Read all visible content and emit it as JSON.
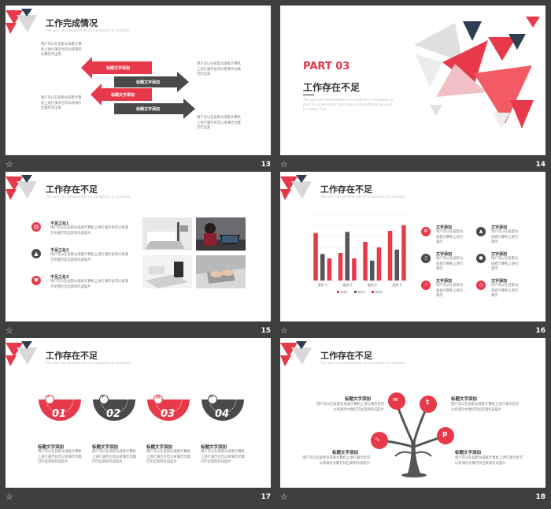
{
  "slides": [
    {
      "number": "13",
      "title": "工作完成情况",
      "subtitle": "The user can demonstrate on a projector or computer",
      "desc_left_top": "用户可以在投影仪或者计算机上进行演示也可以将演示文稿打印出来",
      "desc_left_bottom": "用户可以在投影仪或者计算机上进行演示也可以将演示文稿打印出来",
      "desc_right_top": "用户可以在投影仪或者计算机上进行演示也可以将演示文稿打印出来",
      "desc_right_bottom": "用户可以在投影仪或者计算机上进行演示也可以将演示文稿打印出来",
      "arrow_labels": [
        "标题文字添加",
        "标题文字添加",
        "标题文字添加",
        "标题文字添加"
      ]
    },
    {
      "number": "14",
      "part": "PART 03",
      "title": "工作存在不足",
      "body": "The user can demonstrate on a projector or computer, or print the presentation and make it into a film to be used in a wider field"
    },
    {
      "number": "15",
      "title": "工作存在不足",
      "subtitle": "The user can demonstrate on a projector or computer",
      "items": [
        {
          "title": "不足之处1",
          "text": "用户可以在投影仪或者计算机上进行演示也可以将演示文稿打印出来制作成胶片"
        },
        {
          "title": "不足之处2",
          "text": "用户可以在投影仪或者计算机上进行演示也可以将演示文稿打印出来制作成胶片"
        },
        {
          "title": "不足之处3",
          "text": "用户可以在投影仪或者计算机上进行演示也可以将演示文稿打印出来制作成胶片"
        }
      ]
    },
    {
      "number": "16",
      "title": "工作存在不足",
      "subtitle": "The user can demonstrate on a projector or computer",
      "blocks": [
        {
          "title": "文字添加",
          "text": "用户可以在投影仪或者计算机上进行演示"
        },
        {
          "title": "文字添加",
          "text": "用户可以在投影仪或者计算机上进行演示"
        },
        {
          "title": "文字添加",
          "text": "用户可以在投影仪或者计算机上进行演示"
        },
        {
          "title": "文字添加",
          "text": "用户可以在投影仪或者计算机上进行演示"
        },
        {
          "title": "文字添加",
          "text": "用户可以在投影仪或者计算机上进行演示"
        },
        {
          "title": "文字添加",
          "text": "用户可以在投影仪或者计算机上进行演示"
        }
      ]
    },
    {
      "number": "17",
      "title": "工作存在不足",
      "subtitle": "The user can demonstrate on a projector or computer",
      "steps": [
        {
          "num": "01",
          "title": "标题文字添加",
          "text": "用户可以在投影仪或者计算机上进行演示也可以将演示文稿打印出来制作成胶片"
        },
        {
          "num": "02",
          "title": "标题文字添加",
          "text": "用户可以在投影仪或者计算机上进行演示也可以将演示文稿打印出来制作成胶片"
        },
        {
          "num": "03",
          "title": "标题文字添加",
          "text": "用户可以在投影仪或者计算机上进行演示也可以将演示文稿打印出来制作成胶片"
        },
        {
          "num": "04",
          "title": "标题文字添加",
          "text": "用户可以在投影仪或者计算机上进行演示也可以将演示文稿打印出来制作成胶片"
        }
      ]
    },
    {
      "number": "18",
      "title": "工作存在不足",
      "subtitle": "The user can demonstrate on a projector or computer",
      "labels": [
        {
          "title": "标题文字添加",
          "text": "用户可以在投影仪或者计算机上进行演示也可以将演示文稿打印出来制作成胶片"
        },
        {
          "title": "标题文字添加",
          "text": "用户可以在投影仪或者计算机上进行演示也可以将演示文稿打印出来制作成胶片"
        },
        {
          "title": "标题文字添加",
          "text": "用户可以在投影仪或者计算机上进行演示也可以将演示文稿打印出来制作成胶片"
        },
        {
          "title": "标题文字添加",
          "text": "用户可以在投影仪或者计算机上进行演示也可以将演示文稿打印出来制作成胶片"
        }
      ]
    }
  ],
  "icons": {
    "star": "☆",
    "slide16": [
      "gear",
      "chart",
      "phone",
      "person",
      "trend",
      "clock"
    ],
    "slide17": [
      "link",
      "bike",
      "doc",
      "mail"
    ],
    "slide18": [
      "mail",
      "t",
      "chart",
      "p"
    ]
  },
  "colors": {
    "accent": "#e8394a",
    "dark": "#4a4a4a",
    "bg": "#3f3f3f"
  },
  "chart_data": {
    "type": "bar",
    "categories": [
      "类别 1",
      "类别 2",
      "类别 3",
      "类别 4"
    ],
    "series": [
      {
        "name": "系列1",
        "values": [
          4.3,
          2.5,
          3.5,
          4.5
        ]
      },
      {
        "name": "系列2",
        "values": [
          2.4,
          4.4,
          1.8,
          2.8
        ]
      },
      {
        "name": "系列3",
        "values": [
          2.0,
          2.0,
          3.0,
          5.0
        ]
      }
    ],
    "ylim": [
      0,
      6
    ],
    "colors": [
      "#e8394a",
      "#555555",
      "#e8394a"
    ],
    "grid": true,
    "legend": "bottom"
  }
}
